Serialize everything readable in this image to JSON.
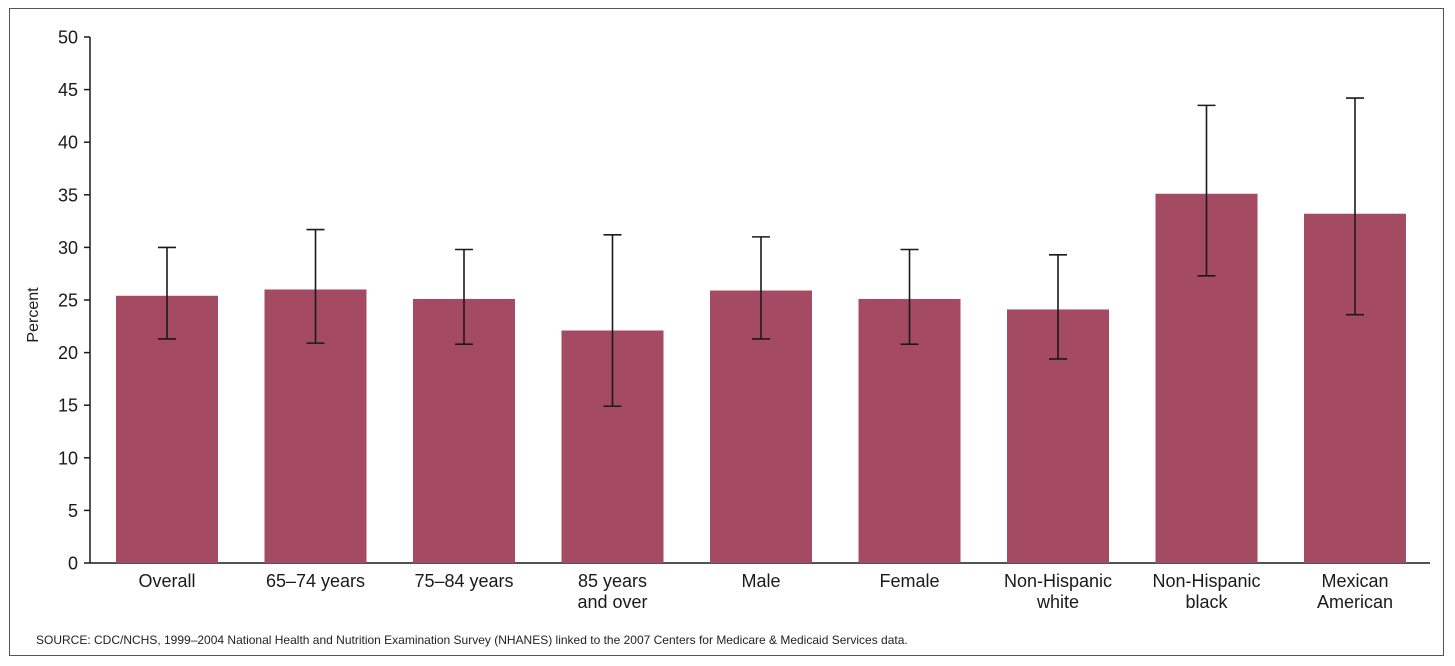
{
  "chart_data": {
    "type": "bar",
    "categories": [
      [
        "Overall"
      ],
      [
        "65–74 years"
      ],
      [
        "75–84 years"
      ],
      [
        "85 years",
        "and over"
      ],
      [
        "Male"
      ],
      [
        "Female"
      ],
      [
        "Non-Hispanic",
        "white"
      ],
      [
        "Non-Hispanic",
        "black"
      ],
      [
        "Mexican",
        "American"
      ]
    ],
    "values": [
      25.4,
      26.0,
      25.1,
      22.1,
      25.9,
      25.1,
      24.1,
      35.1,
      33.2
    ],
    "error_low": [
      21.3,
      20.9,
      20.8,
      14.9,
      21.3,
      20.8,
      19.4,
      27.3,
      23.6
    ],
    "error_high": [
      30.0,
      31.7,
      29.8,
      31.2,
      31.0,
      29.8,
      29.3,
      43.5,
      44.2
    ],
    "ylabel": "Percent",
    "ylim": [
      0,
      50
    ],
    "yticks": [
      "0",
      "5",
      "10",
      "15",
      "20",
      "25",
      "30",
      "35",
      "40",
      "45",
      "50"
    ],
    "grid": false,
    "bar_color": "#a44a62"
  },
  "source": "SOURCE: CDC/NCHS, 1999–2004 National Health and Nutrition Examination Survey (NHANES) linked to the 2007 Centers for Medicare & Medicaid Services data."
}
